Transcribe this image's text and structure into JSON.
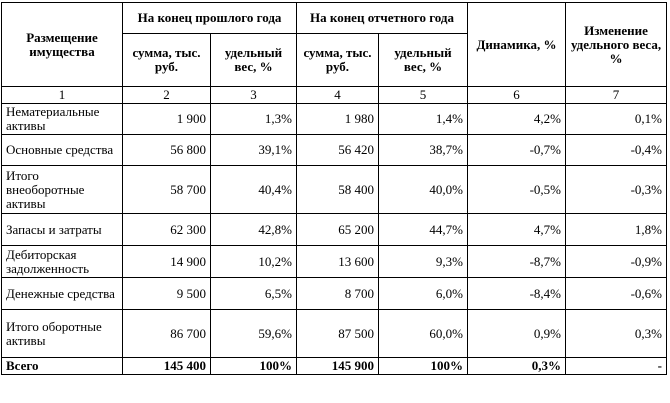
{
  "header": {
    "placement": "Размещение имущества",
    "prev_period": "На конец прошлого года",
    "curr_period": "На конец отчетного года",
    "dynamics": "Динамика, %",
    "share_change": "Изменение удельного веса, %",
    "sum": "сумма, тыс. руб.",
    "share": "удельный вес, %"
  },
  "column_numbers": [
    "1",
    "2",
    "3",
    "4",
    "5",
    "6",
    "7"
  ],
  "rows": [
    {
      "name": "Нематериальные активы",
      "prev_sum": "1 900",
      "prev_share": "1,3%",
      "curr_sum": "1 980",
      "curr_share": "1,4%",
      "dyn": "4,2%",
      "change": "0,1%"
    },
    {
      "name": "Основные средства",
      "prev_sum": "56 800",
      "prev_share": "39,1%",
      "curr_sum": "56 420",
      "curr_share": "38,7%",
      "dyn": "-0,7%",
      "change": "-0,4%"
    },
    {
      "name": "Итого внеоборотные активы",
      "prev_sum": "58 700",
      "prev_share": "40,4%",
      "curr_sum": "58 400",
      "curr_share": "40,0%",
      "dyn": "-0,5%",
      "change": "-0,3%"
    },
    {
      "name": "Запасы и затраты",
      "prev_sum": "62 300",
      "prev_share": "42,8%",
      "curr_sum": "65 200",
      "curr_share": "44,7%",
      "dyn": "4,7%",
      "change": "1,8%"
    },
    {
      "name": "Дебиторская задолженность",
      "prev_sum": "14 900",
      "prev_share": "10,2%",
      "curr_sum": "13 600",
      "curr_share": "9,3%",
      "dyn": "-8,7%",
      "change": "-0,9%"
    },
    {
      "name": "Денежные средства",
      "prev_sum": "9 500",
      "prev_share": "6,5%",
      "curr_sum": "8 700",
      "curr_share": "6,0%",
      "dyn": "-8,4%",
      "change": "-0,6%"
    },
    {
      "name": "Итого оборотные активы",
      "prev_sum": "86 700",
      "prev_share": "59,6%",
      "curr_sum": "87 500",
      "curr_share": "60,0%",
      "dyn": "0,9%",
      "change": "0,3%"
    }
  ],
  "total": {
    "name": "Всего",
    "prev_sum": "145 400",
    "prev_share": "100%",
    "curr_sum": "145 900",
    "curr_share": "100%",
    "dyn": "0,3%",
    "change": "-"
  }
}
